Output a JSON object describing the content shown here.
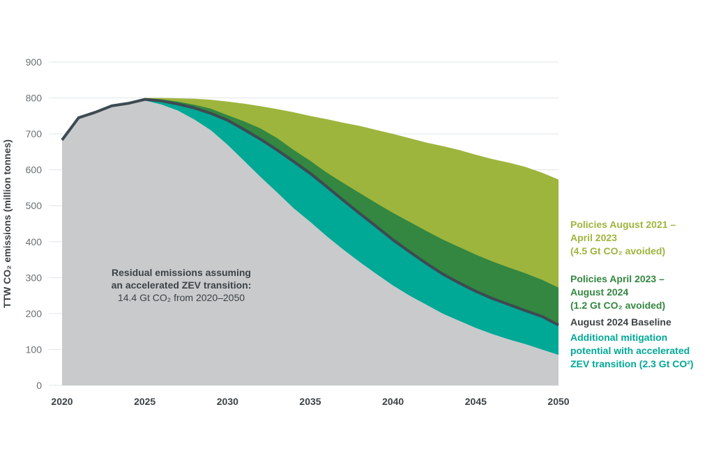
{
  "chart_data": {
    "type": "area",
    "title": "",
    "xlabel": "",
    "ylabel": "TTW CO₂ emissions (million tonnes)",
    "xlim": [
      2020,
      2050
    ],
    "ylim": [
      0,
      900
    ],
    "grid": true,
    "xticks": [
      "2020",
      "2025",
      "2030",
      "2035",
      "2040",
      "2045",
      "2050"
    ],
    "yticks": [
      "0",
      "100",
      "200",
      "300",
      "400",
      "500",
      "600",
      "700",
      "800",
      "900"
    ],
    "x": [
      2020,
      2021,
      2022,
      2023,
      2024,
      2025,
      2026,
      2027,
      2028,
      2029,
      2030,
      2031,
      2032,
      2033,
      2034,
      2035,
      2036,
      2037,
      2038,
      2039,
      2040,
      2041,
      2042,
      2043,
      2044,
      2045,
      2046,
      2047,
      2048,
      2049,
      2050
    ],
    "series": [
      {
        "name": "Policies August 2021 – April 2023 (4.5 Gt CO₂ avoided)",
        "color": "#9db53d",
        "values": [
          683,
          745,
          760,
          778,
          785,
          800,
          800,
          799,
          798,
          795,
          790,
          784,
          777,
          769,
          760,
          750,
          741,
          731,
          722,
          711,
          700,
          688,
          676,
          666,
          655,
          642,
          630,
          620,
          608,
          592,
          573
        ]
      },
      {
        "name": "Policies April 2023 – August 2024 (1.2 Gt CO₂ avoided)",
        "color": "#338740",
        "values": [
          683,
          745,
          760,
          778,
          785,
          800,
          796,
          790,
          781,
          770,
          752,
          735,
          715,
          688,
          655,
          625,
          592,
          563,
          535,
          507,
          480,
          455,
          430,
          406,
          385,
          364,
          345,
          328,
          312,
          294,
          272
        ]
      },
      {
        "name": "August 2024 Baseline",
        "color": "#3d4a52",
        "values": [
          683,
          745,
          760,
          778,
          785,
          796,
          792,
          783,
          772,
          757,
          738,
          712,
          685,
          655,
          623,
          590,
          553,
          515,
          478,
          442,
          405,
          372,
          340,
          310,
          285,
          262,
          242,
          225,
          208,
          192,
          168
        ]
      },
      {
        "name": "Additional mitigation potential with accelerated ZEV transition (2.3 Gt CO²)",
        "color": "#00a896",
        "values": [
          683,
          745,
          760,
          778,
          785,
          793,
          782,
          765,
          740,
          710,
          670,
          625,
          580,
          537,
          493,
          455,
          415,
          378,
          343,
          310,
          278,
          250,
          225,
          200,
          180,
          160,
          143,
          128,
          115,
          100,
          85
        ]
      }
    ],
    "residual_color": "#c8cacc",
    "legend": [
      {
        "lines": [
          "Policies August 2021 –",
          "April 2023",
          "(4.5 Gt CO₂ avoided)"
        ],
        "color": "#9db53d"
      },
      {
        "lines": [
          "Policies April 2023 –",
          "August 2024",
          "(1.2 Gt CO₂ avoided)"
        ],
        "color": "#338740"
      },
      {
        "lines": [
          "August 2024 Baseline"
        ],
        "color": "#3d4a52"
      },
      {
        "lines": [
          "Additional mitigation",
          "potential with accelerated",
          "ZEV transition (2.3 Gt CO²)"
        ],
        "color": "#00a896"
      }
    ],
    "annotation": {
      "lines": [
        "Residual emissions assuming",
        "an accelerated ZEV transition:",
        "14.4 Gt CO₂ from 2020–2050"
      ]
    }
  }
}
